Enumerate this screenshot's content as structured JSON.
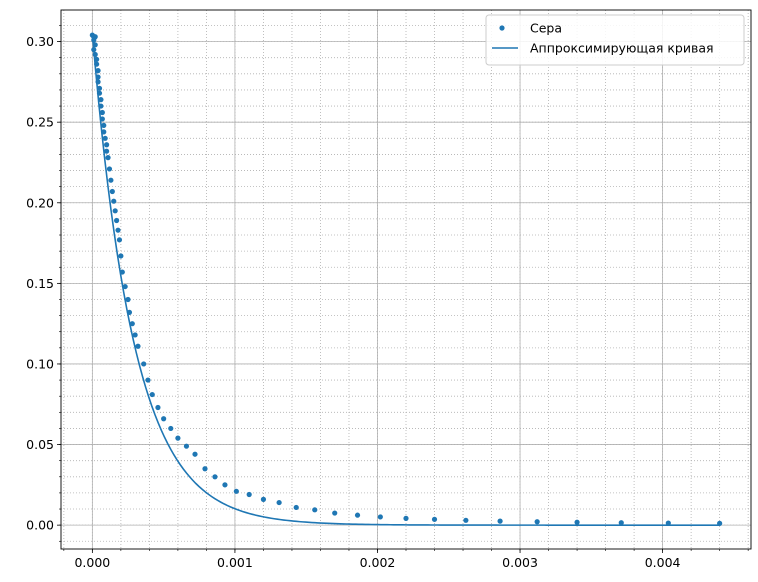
{
  "chart_data": {
    "type": "scatter",
    "xlim": [
      -0.00022,
      0.00462
    ],
    "ylim": [
      -0.0148,
      0.3196
    ],
    "x_ticks": [
      {
        "value": 0.0,
        "label": "0.000"
      },
      {
        "value": 0.001,
        "label": "0.001"
      },
      {
        "value": 0.002,
        "label": "0.002"
      },
      {
        "value": 0.003,
        "label": "0.003"
      },
      {
        "value": 0.004,
        "label": "0.004"
      }
    ],
    "y_ticks": [
      {
        "value": 0.0,
        "label": "0.00"
      },
      {
        "value": 0.05,
        "label": "0.05"
      },
      {
        "value": 0.1,
        "label": "0.10"
      },
      {
        "value": 0.15,
        "label": "0.15"
      },
      {
        "value": 0.2,
        "label": "0.20"
      },
      {
        "value": 0.25,
        "label": "0.25"
      },
      {
        "value": 0.3,
        "label": "0.30"
      }
    ],
    "x_minor_step": 0.0002,
    "y_minor_step": 0.01,
    "grid": {
      "major": true,
      "minor": true
    },
    "legend_position": "top-right",
    "series": [
      {
        "name": "Сера",
        "kind": "scatter",
        "color": "#1f77b4",
        "points": [
          [
            0.0,
            0.304
          ],
          [
            1e-05,
            0.303
          ],
          [
            2e-05,
            0.303
          ],
          [
            1e-05,
            0.301
          ],
          [
            2e-05,
            0.298
          ],
          [
            1e-05,
            0.295
          ],
          [
            2e-05,
            0.292
          ],
          [
            3e-05,
            0.289
          ],
          [
            3e-05,
            0.286
          ],
          [
            4e-05,
            0.282
          ],
          [
            4e-05,
            0.278
          ],
          [
            4e-05,
            0.275
          ],
          [
            5e-05,
            0.271
          ],
          [
            5e-05,
            0.268
          ],
          [
            6e-05,
            0.264
          ],
          [
            6e-05,
            0.26
          ],
          [
            7e-05,
            0.256
          ],
          [
            7e-05,
            0.252
          ],
          [
            8e-05,
            0.248
          ],
          [
            8e-05,
            0.244
          ],
          [
            9e-05,
            0.24
          ],
          [
            0.0001,
            0.236
          ],
          [
            0.0001,
            0.232
          ],
          [
            0.00011,
            0.228
          ],
          [
            0.00012,
            0.221
          ],
          [
            0.00013,
            0.214
          ],
          [
            0.00014,
            0.207
          ],
          [
            0.00015,
            0.201
          ],
          [
            0.00016,
            0.195
          ],
          [
            0.00017,
            0.189
          ],
          [
            0.00018,
            0.183
          ],
          [
            0.00019,
            0.177
          ],
          [
            0.0002,
            0.167
          ],
          [
            0.00021,
            0.157
          ],
          [
            0.00023,
            0.148
          ],
          [
            0.00025,
            0.14
          ],
          [
            0.00026,
            0.132
          ],
          [
            0.00028,
            0.125
          ],
          [
            0.0003,
            0.118
          ],
          [
            0.00032,
            0.111
          ],
          [
            0.00036,
            0.1
          ],
          [
            0.00039,
            0.09
          ],
          [
            0.00042,
            0.081
          ],
          [
            0.00046,
            0.073
          ],
          [
            0.0005,
            0.066
          ],
          [
            0.00055,
            0.06
          ],
          [
            0.0006,
            0.054
          ],
          [
            0.00066,
            0.049
          ],
          [
            0.00072,
            0.044
          ],
          [
            0.00079,
            0.035
          ],
          [
            0.00086,
            0.03
          ],
          [
            0.00093,
            0.025
          ],
          [
            0.00101,
            0.021
          ],
          [
            0.0011,
            0.019
          ],
          [
            0.0012,
            0.016
          ],
          [
            0.00131,
            0.014
          ],
          [
            0.00143,
            0.011
          ],
          [
            0.00156,
            0.0095
          ],
          [
            0.0017,
            0.0075
          ],
          [
            0.00186,
            0.0062
          ],
          [
            0.00202,
            0.0051
          ],
          [
            0.0022,
            0.0042
          ],
          [
            0.0024,
            0.0036
          ],
          [
            0.00262,
            0.003
          ],
          [
            0.00286,
            0.0025
          ],
          [
            0.00312,
            0.0021
          ],
          [
            0.0034,
            0.0018
          ],
          [
            0.00371,
            0.0015
          ],
          [
            0.00404,
            0.0013
          ],
          [
            0.0044,
            0.0011
          ]
        ]
      },
      {
        "name": "Аппроксимирующая кривая",
        "kind": "line",
        "color": "#1f77b4",
        "model": {
          "form": "a*exp(-b*x)",
          "a": 0.305,
          "b": 3400,
          "x_range": [
            0.0,
            0.0044
          ]
        }
      }
    ]
  }
}
